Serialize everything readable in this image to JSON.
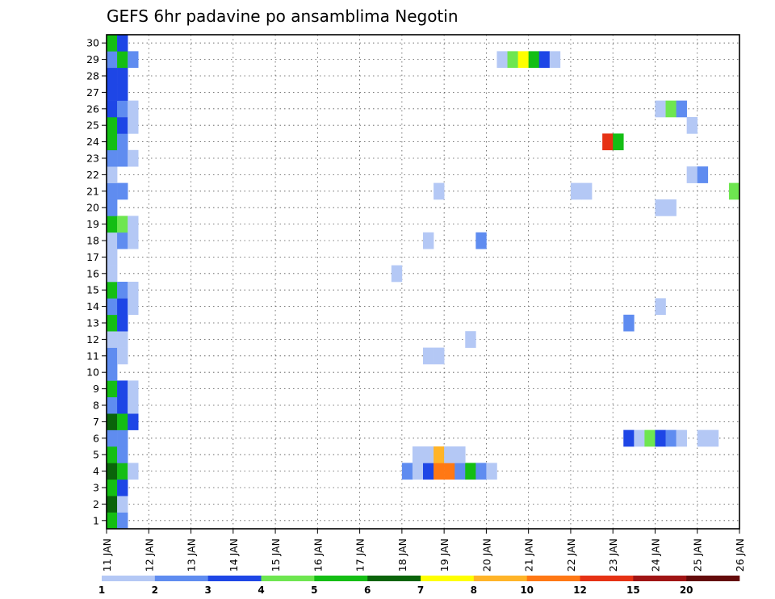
{
  "chart_data": {
    "type": "heatmap",
    "title": "GEFS 6hr padavine po ansamblima Negotin",
    "x_tick_labels": [
      "11 JAN",
      "12 JAN",
      "13 JAN",
      "14 JAN",
      "15 JAN",
      "16 JAN",
      "17 JAN",
      "18 JAN",
      "19 JAN",
      "20 JAN",
      "21 JAN",
      "22 JAN",
      "23 JAN",
      "24 JAN",
      "25 JAN",
      "26 JAN"
    ],
    "y_tick_labels": [
      "1",
      "2",
      "3",
      "4",
      "5",
      "6",
      "7",
      "8",
      "9",
      "10",
      "11",
      "12",
      "13",
      "14",
      "15",
      "16",
      "17",
      "18",
      "19",
      "20",
      "21",
      "22",
      "23",
      "24",
      "25",
      "26",
      "27",
      "28",
      "29",
      "30"
    ],
    "xlim": [
      0,
      15
    ],
    "ylim": [
      0.5,
      30.5
    ],
    "x_unit": "days after 11 JAN 00Z (6-hour steps)",
    "grid": true,
    "colorbar_labels": [
      "1",
      "2",
      "3",
      "4",
      "5",
      "6",
      "7",
      "8",
      "10",
      "12",
      "15",
      "20"
    ],
    "colorbar_colors": [
      "#b4c8f5",
      "#5f8cf0",
      "#1e46e6",
      "#6ee650",
      "#14be14",
      "#0a640a",
      "#ffff00",
      "#ffb428",
      "#ff7814",
      "#e63214",
      "#a01414",
      "#640a0a"
    ],
    "cells": [
      [
        0.0,
        1,
        5
      ],
      [
        0.25,
        1,
        2
      ],
      [
        0.0,
        2,
        6
      ],
      [
        0.25,
        2,
        1
      ],
      [
        0.0,
        3,
        5
      ],
      [
        0.25,
        3,
        3
      ],
      [
        0.0,
        4,
        6
      ],
      [
        0.25,
        4,
        5
      ],
      [
        0.5,
        4,
        1
      ],
      [
        0.0,
        5,
        5
      ],
      [
        0.25,
        5,
        2
      ],
      [
        0.0,
        6,
        2
      ],
      [
        0.25,
        6,
        2
      ],
      [
        0.0,
        7,
        6
      ],
      [
        0.25,
        7,
        5
      ],
      [
        0.5,
        7,
        3
      ],
      [
        0.0,
        8,
        2
      ],
      [
        0.25,
        8,
        3
      ],
      [
        0.5,
        8,
        1
      ],
      [
        0.0,
        9,
        5
      ],
      [
        0.25,
        9,
        3
      ],
      [
        0.5,
        9,
        1
      ],
      [
        0.0,
        10,
        2
      ],
      [
        0.0,
        11,
        2
      ],
      [
        0.25,
        11,
        1
      ],
      [
        0.0,
        12,
        1
      ],
      [
        0.25,
        12,
        1
      ],
      [
        0.0,
        13,
        5
      ],
      [
        0.25,
        13,
        3
      ],
      [
        0.0,
        14,
        2
      ],
      [
        0.25,
        14,
        3
      ],
      [
        0.5,
        14,
        1
      ],
      [
        0.0,
        15,
        5
      ],
      [
        0.25,
        15,
        2
      ],
      [
        0.5,
        15,
        1
      ],
      [
        0.0,
        16,
        1
      ],
      [
        0.0,
        17,
        1
      ],
      [
        0.0,
        18,
        1
      ],
      [
        0.25,
        18,
        2
      ],
      [
        0.5,
        18,
        1
      ],
      [
        0.0,
        19,
        5
      ],
      [
        0.25,
        19,
        4
      ],
      [
        0.5,
        19,
        1
      ],
      [
        0.0,
        20,
        2
      ],
      [
        0.0,
        21,
        2
      ],
      [
        0.25,
        21,
        2
      ],
      [
        0.0,
        22,
        1
      ],
      [
        0.0,
        23,
        2
      ],
      [
        0.25,
        23,
        2
      ],
      [
        0.5,
        23,
        1
      ],
      [
        0.0,
        24,
        5
      ],
      [
        0.25,
        24,
        2
      ],
      [
        0.0,
        25,
        5
      ],
      [
        0.25,
        25,
        3
      ],
      [
        0.5,
        25,
        1
      ],
      [
        0.0,
        26,
        3
      ],
      [
        0.25,
        26,
        2
      ],
      [
        0.5,
        26,
        1
      ],
      [
        0.0,
        27,
        3
      ],
      [
        0.25,
        27,
        3
      ],
      [
        0.0,
        28,
        3
      ],
      [
        0.25,
        28,
        3
      ],
      [
        0.0,
        29,
        2
      ],
      [
        0.25,
        29,
        5
      ],
      [
        0.5,
        29,
        2
      ],
      [
        0.0,
        30,
        5
      ],
      [
        0.25,
        30,
        3
      ],
      [
        7.0,
        4,
        2
      ],
      [
        7.25,
        4,
        1
      ],
      [
        7.5,
        4,
        3
      ],
      [
        7.75,
        4,
        9
      ],
      [
        8.0,
        4,
        9
      ],
      [
        8.25,
        4,
        2
      ],
      [
        8.5,
        4,
        5
      ],
      [
        8.75,
        4,
        2
      ],
      [
        9.0,
        4,
        1
      ],
      [
        7.25,
        5,
        1
      ],
      [
        7.5,
        5,
        1
      ],
      [
        7.75,
        5,
        8
      ],
      [
        8.0,
        5,
        1
      ],
      [
        8.25,
        5,
        1
      ],
      [
        7.5,
        11,
        1
      ],
      [
        7.75,
        11,
        1
      ],
      [
        8.5,
        12,
        1
      ],
      [
        6.75,
        16,
        1
      ],
      [
        7.5,
        18,
        1
      ],
      [
        8.75,
        18,
        2
      ],
      [
        7.75,
        21,
        1
      ],
      [
        9.25,
        29,
        1
      ],
      [
        9.5,
        29,
        4
      ],
      [
        9.75,
        29,
        7
      ],
      [
        10.0,
        29,
        5
      ],
      [
        10.25,
        29,
        3
      ],
      [
        10.5,
        29,
        1
      ],
      [
        11.0,
        21,
        1
      ],
      [
        11.25,
        21,
        1
      ],
      [
        11.75,
        24,
        10
      ],
      [
        12.0,
        24,
        5
      ],
      [
        12.25,
        13,
        2
      ],
      [
        12.25,
        6,
        3
      ],
      [
        12.5,
        6,
        1
      ],
      [
        12.75,
        6,
        4
      ],
      [
        13.0,
        6,
        3
      ],
      [
        13.25,
        6,
        2
      ],
      [
        13.5,
        6,
        1
      ],
      [
        14.0,
        6,
        1
      ],
      [
        14.25,
        6,
        1
      ],
      [
        13.0,
        14,
        1
      ],
      [
        13.0,
        20,
        1
      ],
      [
        13.25,
        20,
        1
      ],
      [
        13.0,
        26,
        1
      ],
      [
        13.25,
        26,
        4
      ],
      [
        13.5,
        26,
        2
      ],
      [
        13.75,
        25,
        1
      ],
      [
        13.75,
        22,
        1
      ],
      [
        14.0,
        22,
        2
      ],
      [
        14.75,
        21,
        4
      ]
    ]
  }
}
